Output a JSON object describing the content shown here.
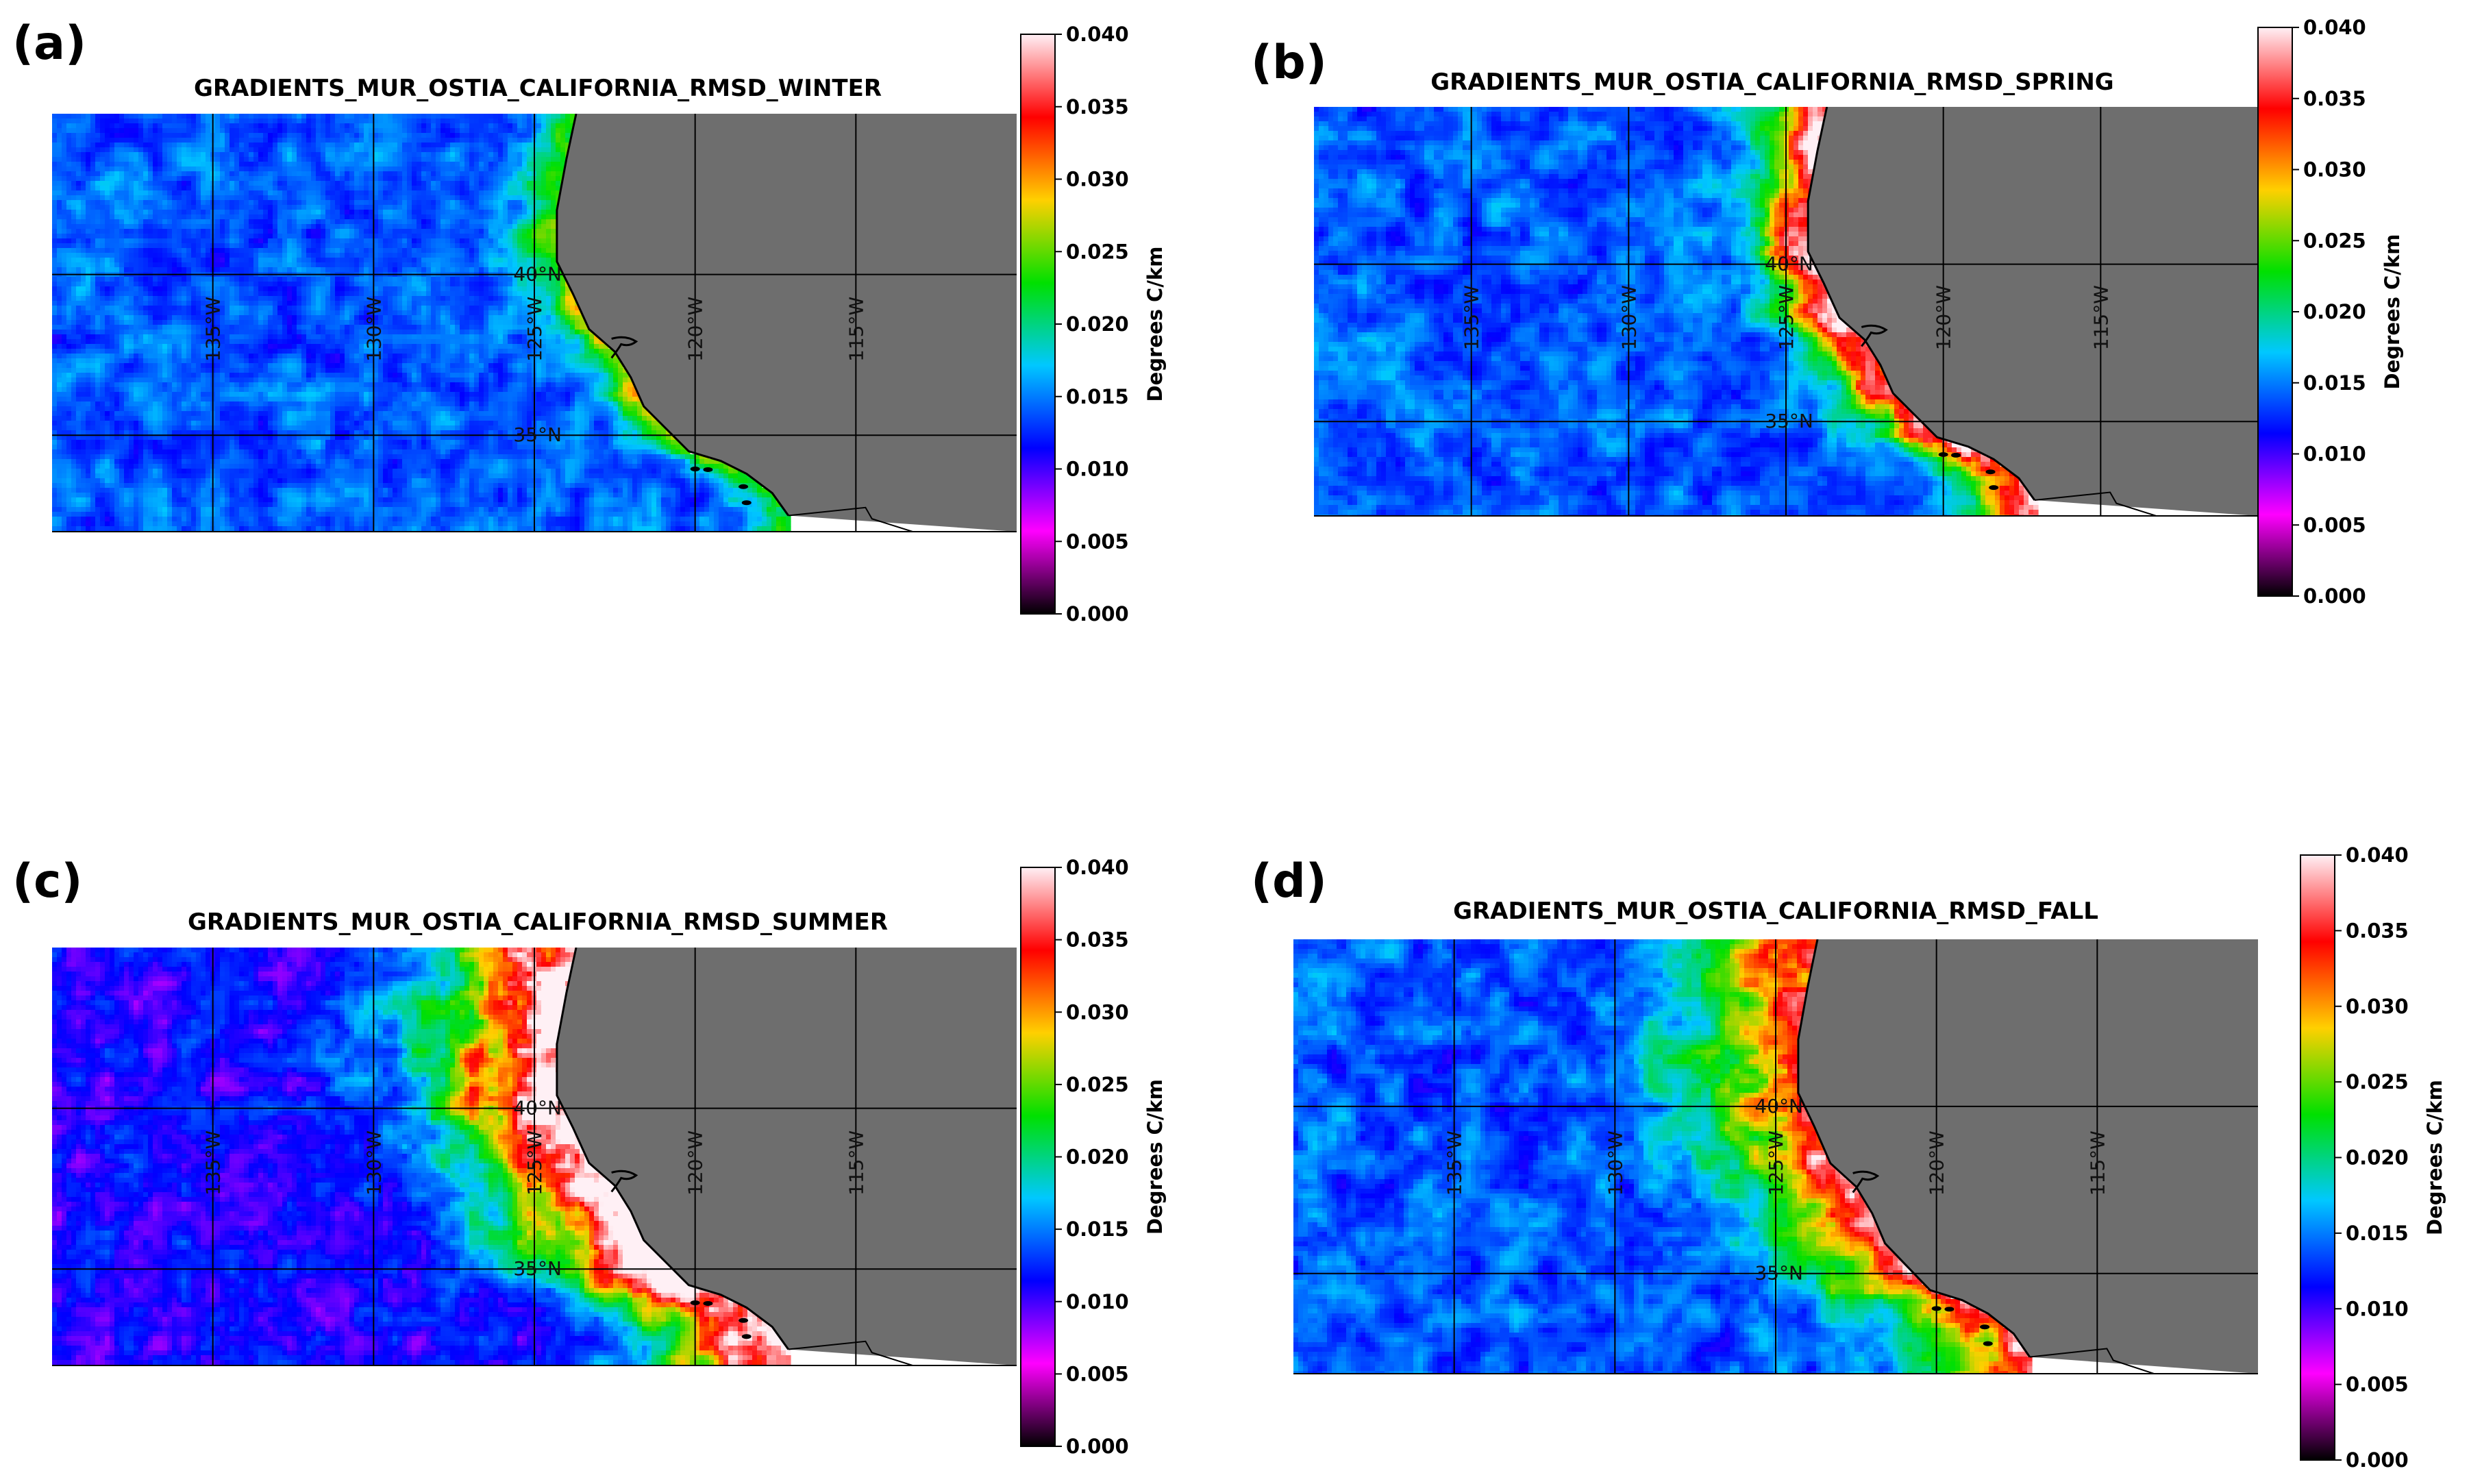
{
  "figure": {
    "colors": {
      "land": "#6e6e6e",
      "grid": "#000000",
      "coast": "#000000",
      "colormap": [
        "#000000",
        "#ff00ff",
        "#0000ff",
        "#00c8ff",
        "#00e000",
        "#ffd000",
        "#ff0000",
        "#fff0f5"
      ]
    },
    "colorbar_label": "Degrees C/km",
    "colorbar_ticks": [
      "0.000",
      "0.005",
      "0.010",
      "0.015",
      "0.020",
      "0.025",
      "0.030",
      "0.035",
      "0.040"
    ],
    "lon_labels": [
      "135°W",
      "130°W",
      "125°W",
      "120°W",
      "115°W"
    ],
    "lat_labels": [
      "40°N",
      "35°N"
    ]
  },
  "panels": [
    {
      "letter": "(a)",
      "title": "GRADIENTS_MUR_OSTIA_CALIFORNIA_RMSD_WINTER"
    },
    {
      "letter": "(b)",
      "title": "GRADIENTS_MUR_OSTIA_CALIFORNIA_RMSD_SPRING"
    },
    {
      "letter": "(c)",
      "title": "GRADIENTS_MUR_OSTIA_CALIFORNIA_RMSD_SUMMER"
    },
    {
      "letter": "(d)",
      "title": "GRADIENTS_MUR_OSTIA_CALIFORNIA_RMSD_FALL"
    }
  ],
  "chart_data": [
    {
      "type": "heatmap",
      "season": "winter",
      "title": "GRADIENTS_MUR_OSTIA_CALIFORNIA_RMSD_WINTER",
      "colorbar_label": "Degrees C/km",
      "colorbar_range": [
        0.0,
        0.04
      ],
      "lon_range": [
        -140,
        -110
      ],
      "lat_range": [
        32,
        45
      ],
      "lon_ticks": [
        -135,
        -130,
        -125,
        -120,
        -115
      ],
      "lat_ticks": [
        40,
        35
      ],
      "offshore_value": 0.014,
      "coastal_peak_value": 0.026,
      "coastal_band_width_deg": 1.0
    },
    {
      "type": "heatmap",
      "season": "spring",
      "title": "GRADIENTS_MUR_OSTIA_CALIFORNIA_RMSD_SPRING",
      "colorbar_label": "Degrees C/km",
      "colorbar_range": [
        0.0,
        0.04
      ],
      "lon_range": [
        -140,
        -110
      ],
      "lat_range": [
        32,
        45
      ],
      "lon_ticks": [
        -135,
        -130,
        -125,
        -120,
        -115
      ],
      "lat_ticks": [
        40,
        35
      ],
      "offshore_value": 0.014,
      "coastal_peak_value": 0.038,
      "coastal_band_width_deg": 1.6
    },
    {
      "type": "heatmap",
      "season": "summer",
      "title": "GRADIENTS_MUR_OSTIA_CALIFORNIA_RMSD_SUMMER",
      "colorbar_label": "Degrees C/km",
      "colorbar_range": [
        0.0,
        0.04
      ],
      "lon_range": [
        -140,
        -110
      ],
      "lat_range": [
        32,
        45
      ],
      "lon_ticks": [
        -135,
        -130,
        -125,
        -120,
        -115
      ],
      "lat_ticks": [
        40,
        35
      ],
      "offshore_value": 0.011,
      "coastal_peak_value": 0.042,
      "coastal_band_width_deg": 3.6
    },
    {
      "type": "heatmap",
      "season": "fall",
      "title": "GRADIENTS_MUR_OSTIA_CALIFORNIA_RMSD_FALL",
      "colorbar_label": "Degrees C/km",
      "colorbar_range": [
        0.0,
        0.04
      ],
      "lon_range": [
        -140,
        -110
      ],
      "lat_range": [
        32,
        45
      ],
      "lon_ticks": [
        -135,
        -130,
        -125,
        -120,
        -115
      ],
      "lat_ticks": [
        40,
        35
      ],
      "offshore_value": 0.014,
      "coastal_peak_value": 0.034,
      "coastal_band_width_deg": 3.0
    }
  ]
}
